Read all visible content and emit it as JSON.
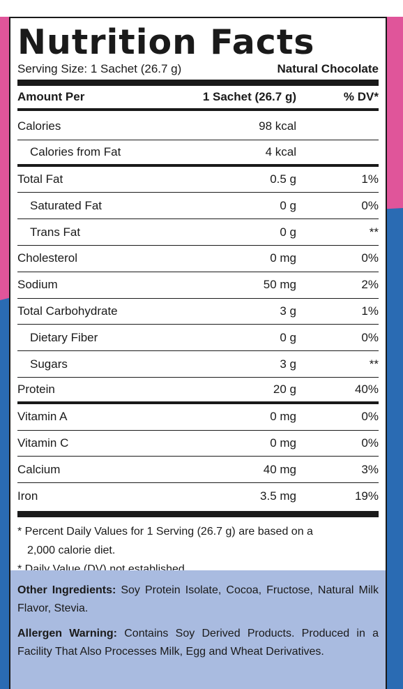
{
  "colors": {
    "background_blue": "#2a6bb3",
    "background_pink": "#e0559a",
    "ingredients_panel": "#a9bbe0",
    "text": "#1a1a1a"
  },
  "label": {
    "title": "Nutrition Facts",
    "serving_size": "Serving Size: 1 Sachet (26.7 g)",
    "flavor": "Natural Chocolate",
    "header": {
      "amount_per": "Amount Per",
      "per_serving": "1 Sachet (26.7 g)",
      "dv": "% DV*"
    },
    "rows": [
      {
        "name": "Calories",
        "amount": "98 kcal",
        "dv": ""
      },
      {
        "name": "Calories from Fat",
        "amount": "4 kcal",
        "dv": ""
      },
      {
        "name": "Total Fat",
        "amount": "0.5 g",
        "dv": "1%"
      },
      {
        "name": "Saturated Fat",
        "amount": "0 g",
        "dv": "0%"
      },
      {
        "name": "Trans Fat",
        "amount": "0 g",
        "dv": "**"
      },
      {
        "name": "Cholesterol",
        "amount": "0 mg",
        "dv": "0%"
      },
      {
        "name": "Sodium",
        "amount": "50 mg",
        "dv": "2%"
      },
      {
        "name": "Total Carbohydrate",
        "amount": "3 g",
        "dv": "1%"
      },
      {
        "name": "Dietary Fiber",
        "amount": "0 g",
        "dv": "0%"
      },
      {
        "name": "Sugars",
        "amount": "3 g",
        "dv": "**"
      },
      {
        "name": "Protein",
        "amount": "20 g",
        "dv": "40%"
      },
      {
        "name": "Vitamin A",
        "amount": "0 mg",
        "dv": "0%"
      },
      {
        "name": "Vitamin C",
        "amount": "0 mg",
        "dv": "0%"
      },
      {
        "name": "Calcium",
        "amount": "40 mg",
        "dv": "3%"
      },
      {
        "name": "Iron",
        "amount": "3.5 mg",
        "dv": "19%"
      }
    ],
    "footnote_1a": "* Percent Daily Values for 1 Serving (26.7 g) are based on a",
    "footnote_1b": "2,000 calorie diet.",
    "footnote_2": "* Daily Value (DV) not established."
  },
  "ingredients": {
    "other_label": "Other Ingredients:",
    "other_text": " Soy Protein Isolate, Cocoa, Fructose, Natural Milk Flavor, Stevia.",
    "allergen_label": "Allergen Warning:",
    "allergen_text": " Contains Soy Derived Products. Produced in a Facility That Also Processes Milk, Egg and Wheat Derivatives."
  }
}
